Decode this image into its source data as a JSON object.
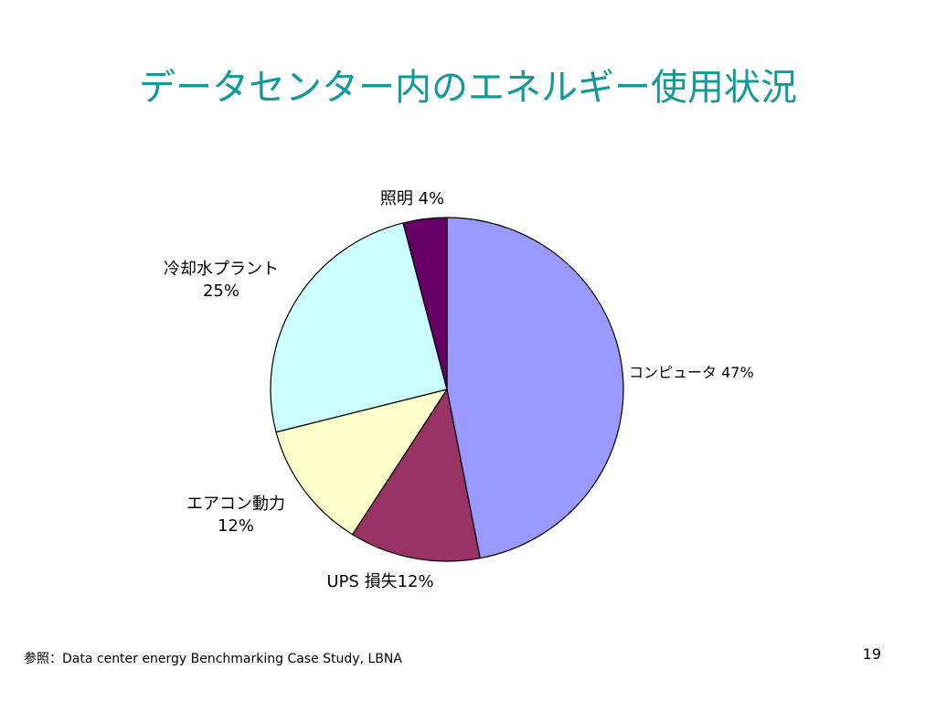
{
  "slide": {
    "title": "データセンター内のエネルギー使用状況",
    "source": "参照：Data center energy Benchmarking Case Study, LBNA",
    "page_number": "19"
  },
  "chart_data": {
    "type": "pie",
    "title": "",
    "start_angle_deg": 0,
    "direction": "clockwise",
    "slices": [
      {
        "label": "コンピュータ",
        "pct_text": "47%",
        "value": 47,
        "color": "#9999ff"
      },
      {
        "label": "UPS 損失",
        "pct_text": "12%",
        "value": 12,
        "color": "#993366"
      },
      {
        "label": "エアコン動力",
        "pct_text": "12%",
        "value": 12,
        "color": "#ffffcc"
      },
      {
        "label": "冷却水プラント",
        "pct_text": "25%",
        "value": 25,
        "color": "#ccffff"
      },
      {
        "label": "照明",
        "pct_text": "4%",
        "value": 4,
        "color": "#660066"
      }
    ],
    "labels": [
      {
        "line1": "照明 4%",
        "line2": ""
      },
      {
        "line1": "冷却水プラント",
        "line2": "25%"
      },
      {
        "line1": "コンピュータ 47%",
        "line2": ""
      },
      {
        "line1": "エアコン動力",
        "line2": "12%"
      },
      {
        "line1": "UPS 損失12%",
        "line2": ""
      }
    ]
  }
}
